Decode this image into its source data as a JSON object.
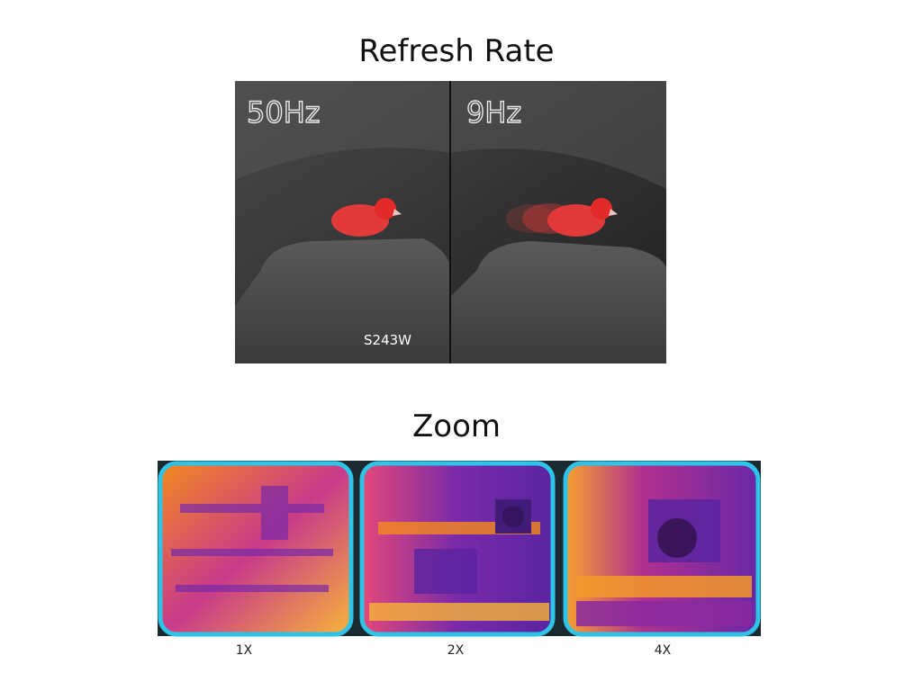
{
  "refresh": {
    "title": "Refresh Rate",
    "left_label": "50Hz",
    "right_label": "9Hz",
    "model": "S243W"
  },
  "zoom": {
    "title": "Zoom",
    "labels": [
      "1X",
      "2X",
      "4X"
    ]
  }
}
